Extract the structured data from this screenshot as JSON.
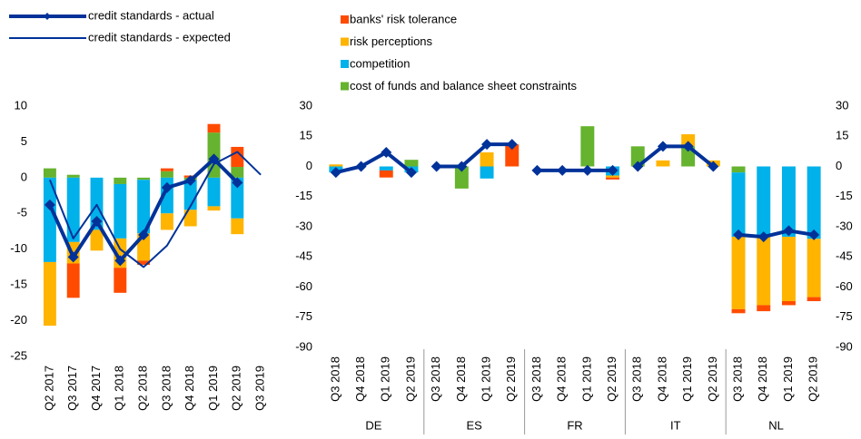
{
  "chart_data": [
    {
      "type": "bar",
      "stacked": true,
      "categories": [
        "Q2 2017",
        "Q3 2017",
        "Q4 2017",
        "Q1 2018",
        "Q2 2018",
        "Q3 2018",
        "Q4 2018",
        "Q1 2019",
        "Q2 2019",
        "Q3 2019"
      ],
      "ylim": [
        -25,
        10
      ],
      "yticks": [
        -25,
        -20,
        -15,
        -10,
        -5,
        0,
        5,
        10
      ],
      "series": [
        {
          "type": "bar",
          "color": "#ff4b00",
          "values": [
            0,
            -4.8,
            0,
            -3.5,
            -0.6,
            0.4,
            0.3,
            1.2,
            2.8,
            null
          ]
        },
        {
          "type": "bar",
          "color": "#ffb400",
          "values": [
            -8.9,
            -3,
            -2.9,
            -4.1,
            -3.8,
            -2.3,
            -2.3,
            -0.6,
            -2.2,
            null
          ]
        },
        {
          "type": "bar",
          "color": "#00b1ea",
          "values": [
            -11.8,
            -9,
            -7.3,
            -7.6,
            -7.5,
            -5,
            -4.2,
            -4,
            -5.7,
            null
          ]
        },
        {
          "type": "bar",
          "color": "#65b32e",
          "values": [
            1.3,
            0.4,
            0,
            -0.9,
            -0.3,
            0.9,
            -0.3,
            6.3,
            1.5,
            null
          ]
        },
        {
          "type": "line",
          "name": "credit standards - actual",
          "color": "#003299",
          "marker": "diamond",
          "values": [
            -3.8,
            -11.1,
            -6.1,
            -11.6,
            -8,
            -1.4,
            -0.4,
            2.6,
            -0.7,
            null
          ]
        },
        {
          "type": "line",
          "name": "credit standards - expected",
          "color": "#003299",
          "values": [
            -0.3,
            -8.5,
            -3.8,
            -10,
            -12.5,
            -9.5,
            -4,
            1.9,
            3.6,
            0.4
          ]
        }
      ]
    },
    {
      "type": "bar",
      "stacked": true,
      "categories": [
        "Q3 2018",
        "Q4 2018",
        "Q1 2019",
        "Q2 2019",
        "Q3 2018",
        "Q4 2018",
        "Q1 2019",
        "Q2 2019",
        "Q3 2018",
        "Q4 2018",
        "Q1 2019",
        "Q2 2019",
        "Q3 2018",
        "Q4 2018",
        "Q1 2019",
        "Q2 2019",
        "Q3 2018",
        "Q4 2018",
        "Q1 2019",
        "Q2 2019"
      ],
      "groups": [
        "DE",
        "ES",
        "FR",
        "IT",
        "NL"
      ],
      "ylim": [
        -90,
        30
      ],
      "yticks": [
        -90,
        -75,
        -60,
        -45,
        -30,
        -15,
        0,
        15,
        30
      ],
      "y2lim": [
        -90,
        30
      ],
      "y2ticks": [
        -90,
        -75,
        -60,
        -45,
        -30,
        -15,
        0,
        15,
        30
      ],
      "series": [
        {
          "type": "bar",
          "name": "banks' risk tolerance",
          "color": "#ff4b00",
          "values": [
            0,
            0,
            -3.5,
            0,
            0,
            0,
            0,
            11,
            0,
            0,
            0,
            -1,
            0,
            0,
            0,
            0,
            -2,
            -3,
            -2,
            -2
          ]
        },
        {
          "type": "bar",
          "name": "risk perceptions",
          "color": "#ffb400",
          "values": [
            1,
            0,
            0,
            0,
            0,
            0,
            7,
            0,
            0,
            0,
            0,
            -1,
            0,
            3,
            6,
            3,
            -36,
            -34,
            -32,
            -29
          ]
        },
        {
          "type": "bar",
          "name": "competition",
          "color": "#00b1ea",
          "values": [
            -3,
            0,
            -2,
            -3,
            0,
            0,
            -6,
            0,
            0,
            0,
            0,
            -4.5,
            0,
            0,
            0,
            0,
            -32,
            -35,
            -35,
            -36
          ]
        },
        {
          "type": "bar",
          "name": "cost of funds and balance sheet constraints",
          "color": "#65b32e",
          "values": [
            0,
            0,
            0,
            3.3,
            0,
            -11,
            0,
            0,
            0,
            0,
            20,
            0,
            10,
            0,
            10,
            0,
            -3,
            0,
            0,
            0
          ]
        },
        {
          "type": "line",
          "color": "#003299",
          "marker": "diamond",
          "values": [
            -3,
            0,
            7,
            -3,
            0,
            0,
            11,
            11,
            -2,
            -2,
            -2,
            -2,
            0,
            10,
            10,
            0,
            -34,
            -35,
            -32,
            -34
          ]
        }
      ]
    }
  ]
}
